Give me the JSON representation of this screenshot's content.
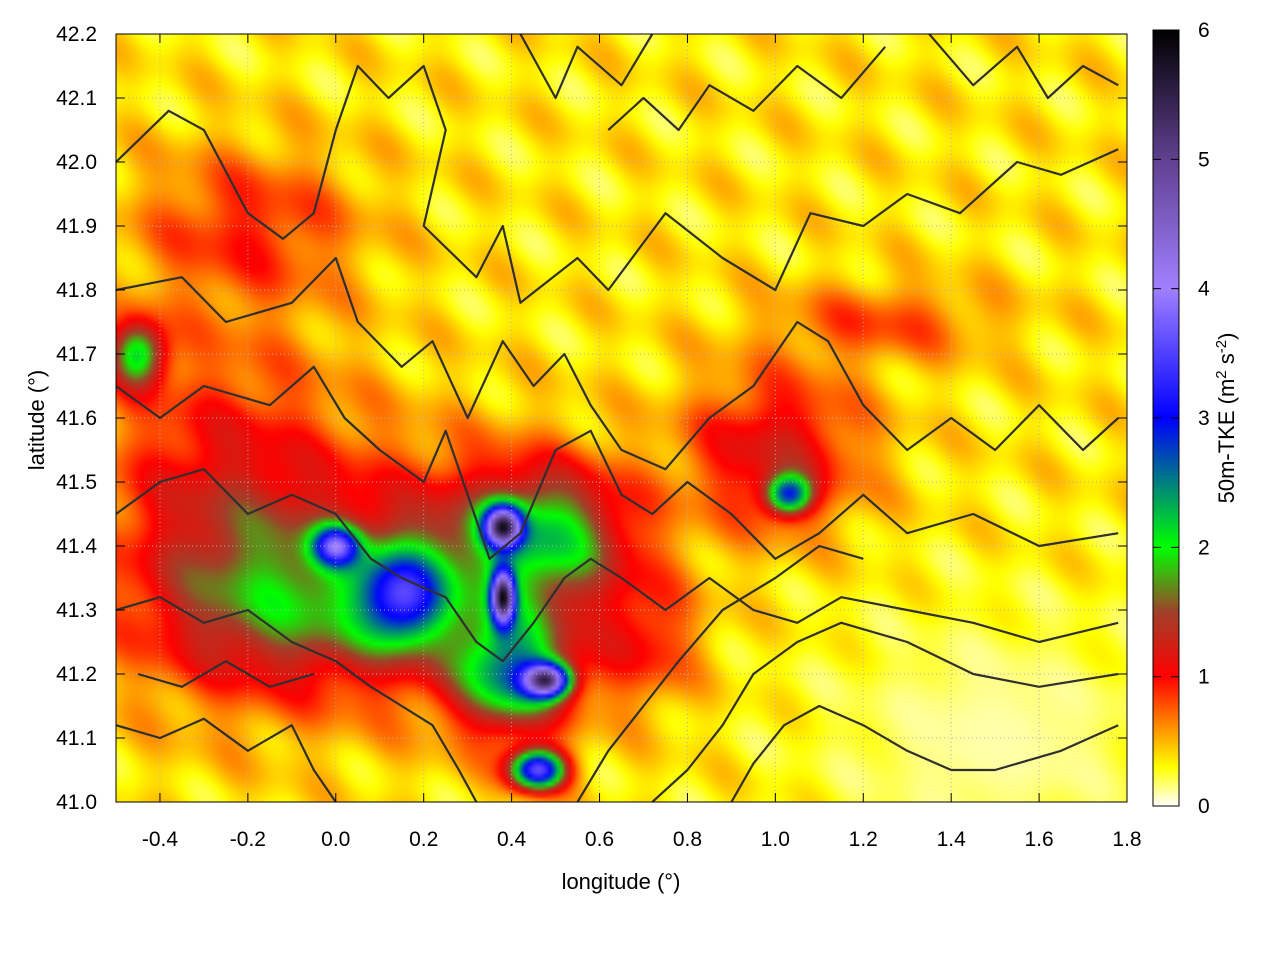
{
  "chart_data": {
    "type": "heatmap",
    "title": "",
    "xlabel": "longitude (°)",
    "ylabel": "latitude (°)",
    "xlim": [
      -0.5,
      1.8
    ],
    "ylim": [
      41.0,
      42.2
    ],
    "x_ticks": [
      -0.4,
      -0.2,
      0.0,
      0.2,
      0.4,
      0.6,
      0.8,
      1.0,
      1.2,
      1.4,
      1.6,
      1.8
    ],
    "x_tick_labels": [
      "-0.4",
      "-0.2",
      "0.0",
      "0.2",
      "0.4",
      "0.6",
      "0.8",
      "1.0",
      "1.2",
      "1.4",
      "1.6",
      "1.8"
    ],
    "y_ticks": [
      41.0,
      41.1,
      41.2,
      41.3,
      41.4,
      41.5,
      41.6,
      41.7,
      41.8,
      41.9,
      42.0,
      42.1,
      42.2
    ],
    "y_tick_labels": [
      "41.0",
      "41.1",
      "41.2",
      "41.3",
      "41.4",
      "41.5",
      "41.6",
      "41.7",
      "41.8",
      "41.9",
      "42.0",
      "42.1",
      "42.2"
    ],
    "grid": true,
    "colorbar": {
      "label_main": "50m-TKE (m",
      "label_sup1": "2",
      "label_mid": " s",
      "label_sup2": "-2",
      "label_end": ")",
      "range": [
        0,
        6
      ],
      "ticks": [
        0,
        1,
        2,
        3,
        4,
        5,
        6
      ],
      "tick_labels": [
        "0",
        "1",
        "2",
        "3",
        "4",
        "5",
        "6"
      ],
      "stops": [
        {
          "v": 0.0,
          "color": "#ffffff"
        },
        {
          "v": 0.3,
          "color": "#ffff00"
        },
        {
          "v": 0.65,
          "color": "#ff8000"
        },
        {
          "v": 1.0,
          "color": "#ff0000"
        },
        {
          "v": 1.5,
          "color": "#a0402a"
        },
        {
          "v": 2.0,
          "color": "#00ff00"
        },
        {
          "v": 3.0,
          "color": "#0000ff"
        },
        {
          "v": 4.0,
          "color": "#a080ff"
        },
        {
          "v": 5.0,
          "color": "#604090"
        },
        {
          "v": 6.0,
          "color": "#000000"
        }
      ]
    },
    "tke_field": {
      "background": 0.35,
      "features": [
        {
          "kind": "blob",
          "lon": -0.25,
          "lat": 41.45,
          "rx": 0.28,
          "ry": 0.25,
          "v": 1.2
        },
        {
          "kind": "blob",
          "lon": -0.1,
          "lat": 41.3,
          "rx": 0.3,
          "ry": 0.12,
          "v": 1.1
        },
        {
          "kind": "blob",
          "lon": 0.25,
          "lat": 41.35,
          "rx": 0.35,
          "ry": 0.18,
          "v": 1.3
        },
        {
          "kind": "blob",
          "lon": 0.48,
          "lat": 41.42,
          "rx": 0.18,
          "ry": 0.1,
          "v": 1.7
        },
        {
          "kind": "blob",
          "lon": 0.0,
          "lat": 41.4,
          "rx": 0.05,
          "ry": 0.03,
          "v": 2.6
        },
        {
          "kind": "blob",
          "lon": 0.15,
          "lat": 41.32,
          "rx": 0.09,
          "ry": 0.07,
          "v": 2.3
        },
        {
          "kind": "blob",
          "lon": 0.4,
          "lat": 41.2,
          "rx": 0.12,
          "ry": 0.09,
          "v": 2.2
        },
        {
          "kind": "blob",
          "lon": 0.48,
          "lat": 41.19,
          "rx": 0.05,
          "ry": 0.025,
          "v": 4.0
        },
        {
          "kind": "blob",
          "lon": 0.38,
          "lat": 41.43,
          "rx": 0.04,
          "ry": 0.03,
          "v": 4.0
        },
        {
          "kind": "blob",
          "lon": 0.38,
          "lat": 41.32,
          "rx": 0.025,
          "ry": 0.04,
          "v": 4.3
        },
        {
          "kind": "blob",
          "lon": 0.46,
          "lat": 41.05,
          "rx": 0.06,
          "ry": 0.03,
          "v": 3.5
        },
        {
          "kind": "blob",
          "lon": 1.0,
          "lat": 41.55,
          "rx": 0.2,
          "ry": 0.12,
          "v": 1.2
        },
        {
          "kind": "blob",
          "lon": 1.03,
          "lat": 41.48,
          "rx": 0.05,
          "ry": 0.03,
          "v": 2.4
        },
        {
          "kind": "blob",
          "lon": -0.2,
          "lat": 41.9,
          "rx": 0.25,
          "ry": 0.12,
          "v": 0.9
        },
        {
          "kind": "blob",
          "lon": 0.7,
          "lat": 41.25,
          "rx": 0.12,
          "ry": 0.1,
          "v": 0.9
        },
        {
          "kind": "blob",
          "lon": 1.25,
          "lat": 41.75,
          "rx": 0.25,
          "ry": 0.06,
          "v": 0.8
        },
        {
          "kind": "blob",
          "lon": -0.45,
          "lat": 41.7,
          "rx": 0.06,
          "ry": 0.05,
          "v": 2.0
        },
        {
          "kind": "calm",
          "lon": 1.5,
          "lat": 41.1,
          "rx": 0.4,
          "ry": 0.2,
          "v": 0.1
        }
      ]
    },
    "contours": [
      [
        [
          -0.5,
          42.0
        ],
        [
          -0.38,
          42.08
        ],
        [
          -0.3,
          42.05
        ],
        [
          -0.2,
          41.92
        ],
        [
          -0.12,
          41.88
        ],
        [
          -0.05,
          41.92
        ],
        [
          0.0,
          42.05
        ],
        [
          0.05,
          42.15
        ],
        [
          0.12,
          42.1
        ],
        [
          0.2,
          42.15
        ],
        [
          0.25,
          42.05
        ],
        [
          0.2,
          41.9
        ],
        [
          0.32,
          41.82
        ],
        [
          0.38,
          41.9
        ],
        [
          0.42,
          41.78
        ],
        [
          0.55,
          41.85
        ],
        [
          0.62,
          41.8
        ],
        [
          0.75,
          41.92
        ],
        [
          0.88,
          41.85
        ],
        [
          1.0,
          41.8
        ],
        [
          1.08,
          41.92
        ],
        [
          1.2,
          41.9
        ],
        [
          1.3,
          41.95
        ],
        [
          1.42,
          41.92
        ],
        [
          1.55,
          42.0
        ],
        [
          1.65,
          41.98
        ],
        [
          1.78,
          42.02
        ]
      ],
      [
        [
          -0.5,
          41.8
        ],
        [
          -0.35,
          41.82
        ],
        [
          -0.25,
          41.75
        ],
        [
          -0.1,
          41.78
        ],
        [
          0.0,
          41.85
        ],
        [
          0.05,
          41.75
        ],
        [
          0.15,
          41.68
        ],
        [
          0.22,
          41.72
        ],
        [
          0.3,
          41.6
        ],
        [
          0.38,
          41.72
        ],
        [
          0.45,
          41.65
        ],
        [
          0.52,
          41.7
        ],
        [
          0.58,
          41.62
        ],
        [
          0.65,
          41.55
        ],
        [
          0.75,
          41.52
        ],
        [
          0.85,
          41.6
        ],
        [
          0.95,
          41.65
        ],
        [
          1.05,
          41.75
        ],
        [
          1.12,
          41.72
        ],
        [
          1.2,
          41.62
        ],
        [
          1.3,
          41.55
        ],
        [
          1.4,
          41.6
        ],
        [
          1.5,
          41.55
        ],
        [
          1.6,
          41.62
        ],
        [
          1.7,
          41.55
        ],
        [
          1.78,
          41.6
        ]
      ],
      [
        [
          -0.5,
          41.65
        ],
        [
          -0.4,
          41.6
        ],
        [
          -0.3,
          41.65
        ],
        [
          -0.15,
          41.62
        ],
        [
          -0.05,
          41.68
        ],
        [
          0.02,
          41.6
        ],
        [
          0.1,
          41.55
        ],
        [
          0.2,
          41.5
        ],
        [
          0.25,
          41.58
        ],
        [
          0.3,
          41.48
        ],
        [
          0.35,
          41.38
        ],
        [
          0.42,
          41.42
        ],
        [
          0.5,
          41.55
        ],
        [
          0.58,
          41.58
        ],
        [
          0.65,
          41.48
        ],
        [
          0.72,
          41.45
        ],
        [
          0.8,
          41.5
        ],
        [
          0.9,
          41.45
        ],
        [
          1.0,
          41.38
        ],
        [
          1.1,
          41.42
        ],
        [
          1.2,
          41.48
        ],
        [
          1.3,
          41.42
        ],
        [
          1.45,
          41.45
        ],
        [
          1.6,
          41.4
        ],
        [
          1.78,
          41.42
        ]
      ],
      [
        [
          -0.5,
          41.45
        ],
        [
          -0.4,
          41.5
        ],
        [
          -0.3,
          41.52
        ],
        [
          -0.2,
          41.45
        ],
        [
          -0.1,
          41.48
        ],
        [
          0.0,
          41.45
        ],
        [
          0.08,
          41.38
        ],
        [
          0.15,
          41.35
        ],
        [
          0.25,
          41.32
        ],
        [
          0.32,
          41.25
        ],
        [
          0.38,
          41.22
        ],
        [
          0.45,
          41.28
        ],
        [
          0.52,
          41.35
        ],
        [
          0.58,
          41.38
        ],
        [
          0.65,
          41.35
        ],
        [
          0.75,
          41.3
        ],
        [
          0.85,
          41.35
        ],
        [
          0.95,
          41.3
        ],
        [
          1.05,
          41.28
        ],
        [
          1.15,
          41.32
        ],
        [
          1.3,
          41.3
        ],
        [
          1.45,
          41.28
        ],
        [
          1.6,
          41.25
        ],
        [
          1.78,
          41.28
        ]
      ],
      [
        [
          -0.5,
          41.3
        ],
        [
          -0.4,
          41.32
        ],
        [
          -0.3,
          41.28
        ],
        [
          -0.2,
          41.3
        ],
        [
          -0.1,
          41.25
        ],
        [
          0.0,
          41.22
        ],
        [
          0.08,
          41.18
        ],
        [
          0.15,
          41.15
        ],
        [
          0.22,
          41.12
        ],
        [
          0.28,
          41.05
        ],
        [
          0.32,
          41.0
        ]
      ],
      [
        [
          -0.5,
          41.12
        ],
        [
          -0.4,
          41.1
        ],
        [
          -0.3,
          41.13
        ],
        [
          -0.2,
          41.08
        ],
        [
          -0.1,
          41.12
        ],
        [
          -0.05,
          41.05
        ],
        [
          0.0,
          41.0
        ]
      ],
      [
        [
          0.55,
          41.0
        ],
        [
          0.62,
          41.08
        ],
        [
          0.7,
          41.15
        ],
        [
          0.78,
          41.22
        ],
        [
          0.88,
          41.3
        ],
        [
          1.0,
          41.35
        ],
        [
          1.1,
          41.4
        ],
        [
          1.2,
          41.38
        ]
      ],
      [
        [
          0.72,
          41.0
        ],
        [
          0.8,
          41.05
        ],
        [
          0.88,
          41.12
        ],
        [
          0.95,
          41.2
        ],
        [
          1.05,
          41.25
        ],
        [
          1.15,
          41.28
        ],
        [
          1.3,
          41.25
        ],
        [
          1.45,
          41.2
        ],
        [
          1.6,
          41.18
        ],
        [
          1.78,
          41.2
        ]
      ],
      [
        [
          0.9,
          41.0
        ],
        [
          0.95,
          41.06
        ],
        [
          1.02,
          41.12
        ],
        [
          1.1,
          41.15
        ],
        [
          1.2,
          41.12
        ],
        [
          1.3,
          41.08
        ],
        [
          1.4,
          41.05
        ],
        [
          1.5,
          41.05
        ],
        [
          1.65,
          41.08
        ],
        [
          1.78,
          41.12
        ]
      ],
      [
        [
          0.42,
          42.2
        ],
        [
          0.5,
          42.1
        ],
        [
          0.55,
          42.18
        ],
        [
          0.65,
          42.12
        ],
        [
          0.72,
          42.2
        ]
      ],
      [
        [
          0.62,
          42.05
        ],
        [
          0.7,
          42.1
        ],
        [
          0.78,
          42.05
        ],
        [
          0.85,
          42.12
        ],
        [
          0.95,
          42.08
        ],
        [
          1.05,
          42.15
        ],
        [
          1.15,
          42.1
        ],
        [
          1.25,
          42.18
        ]
      ],
      [
        [
          1.35,
          42.2
        ],
        [
          1.45,
          42.12
        ],
        [
          1.55,
          42.18
        ],
        [
          1.62,
          42.1
        ],
        [
          1.7,
          42.15
        ],
        [
          1.78,
          42.12
        ]
      ],
      [
        [
          -0.45,
          41.2
        ],
        [
          -0.35,
          41.18
        ],
        [
          -0.25,
          41.22
        ],
        [
          -0.15,
          41.18
        ],
        [
          -0.05,
          41.2
        ]
      ]
    ]
  }
}
